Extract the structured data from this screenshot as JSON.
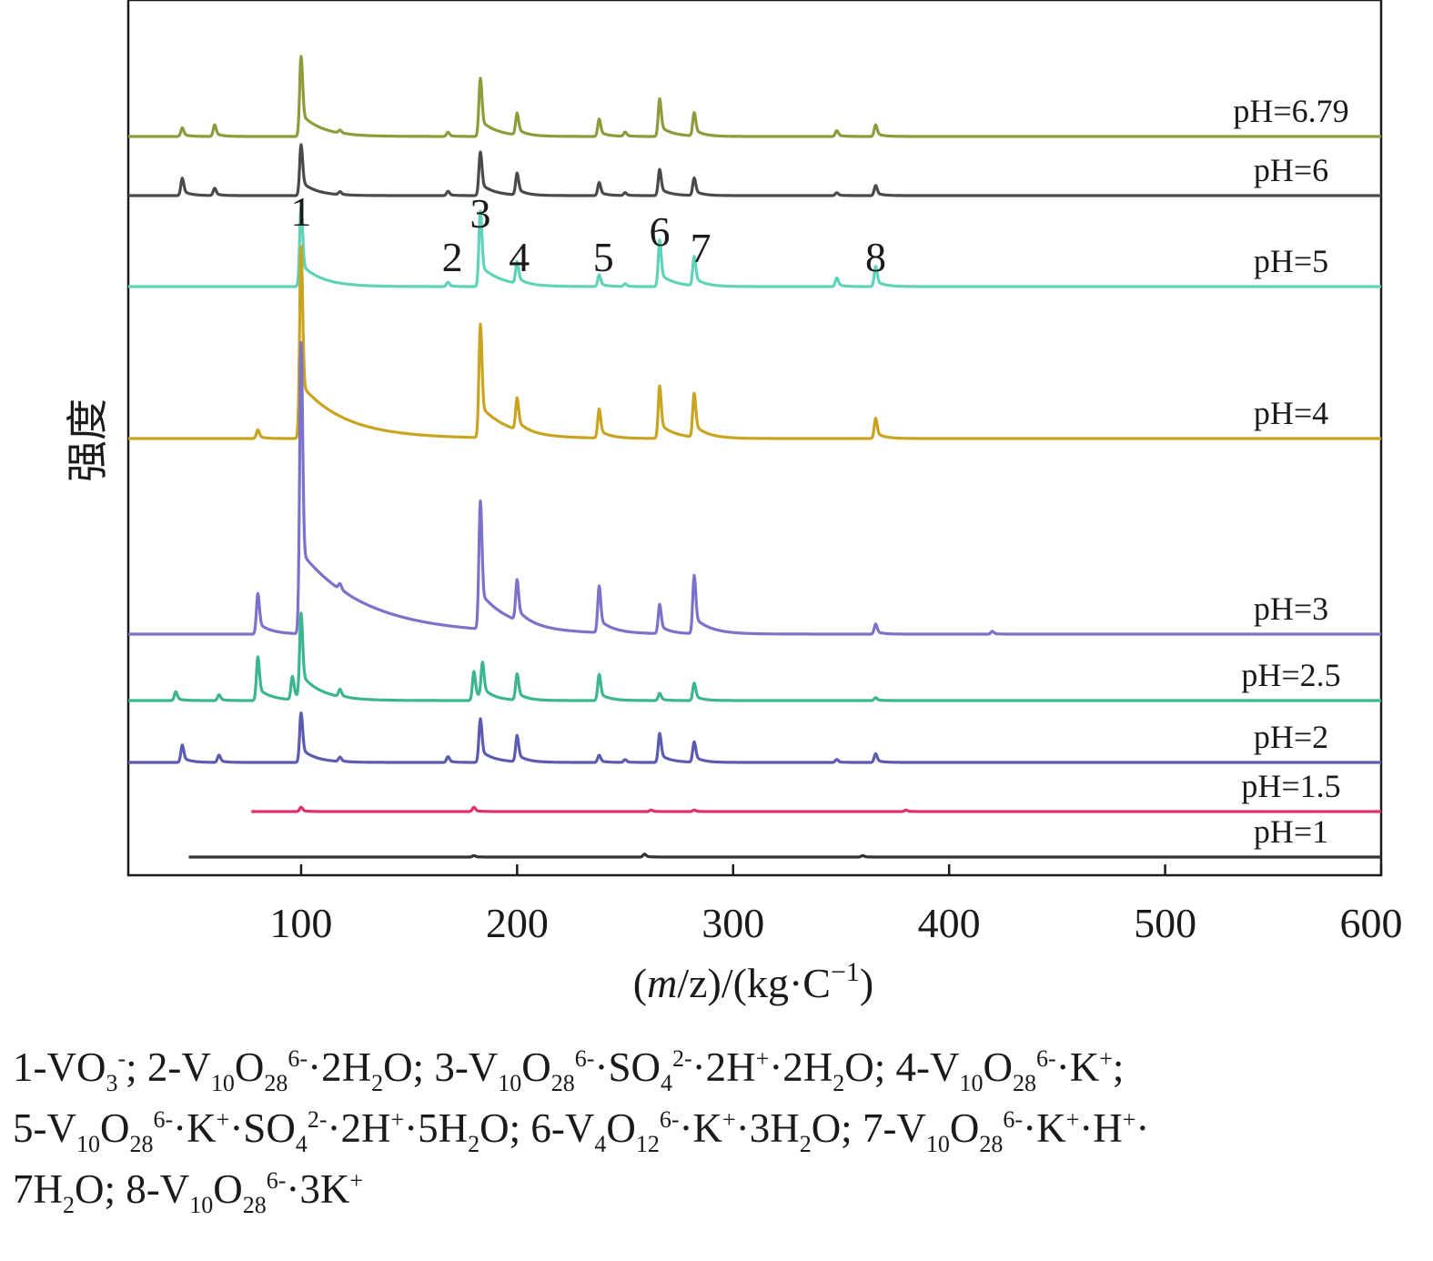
{
  "chart_data": {
    "type": "line",
    "title": "",
    "xlabel": "(m/z)/(kg·C⁻¹)",
    "ylabel": "强度",
    "xlim": [
      20,
      600
    ],
    "xticks": [
      100,
      200,
      300,
      400,
      500,
      600
    ],
    "grid": false,
    "y_scale": "stacked-offset (arbitrary intensity units)",
    "colors": {
      "pH=6.79": "#8f9a3a",
      "pH=6": "#4a4a4a",
      "pH=5": "#5fd3b8",
      "pH=4": "#c9a420",
      "pH=3": "#7b72c9",
      "pH=2.5": "#3cb591",
      "pH=2": "#5b5bb0",
      "pH=1.5": "#e0306a",
      "pH=1": "#333333"
    },
    "series": [
      {
        "name": "pH=6.79",
        "xrange": [
          20,
          600
        ],
        "peaks": [
          [
            45,
            0.06
          ],
          [
            60,
            0.08
          ],
          [
            100,
            0.55
          ],
          [
            118,
            0.02
          ],
          [
            168,
            0.03
          ],
          [
            183,
            0.4
          ],
          [
            200,
            0.15
          ],
          [
            238,
            0.12
          ],
          [
            250,
            0.03
          ],
          [
            266,
            0.26
          ],
          [
            282,
            0.16
          ],
          [
            348,
            0.04
          ],
          [
            366,
            0.08
          ]
        ]
      },
      {
        "name": "pH=6",
        "xrange": [
          20,
          600
        ],
        "peaks": [
          [
            45,
            0.12
          ],
          [
            60,
            0.05
          ],
          [
            100,
            0.35
          ],
          [
            118,
            0.02
          ],
          [
            168,
            0.03
          ],
          [
            183,
            0.3
          ],
          [
            200,
            0.15
          ],
          [
            238,
            0.09
          ],
          [
            250,
            0.02
          ],
          [
            266,
            0.18
          ],
          [
            282,
            0.12
          ],
          [
            348,
            0.02
          ],
          [
            366,
            0.07
          ]
        ]
      },
      {
        "name": "pH=5",
        "xrange": [
          20,
          600
        ],
        "peaks": [
          [
            100,
            0.55
          ],
          [
            168,
            0.03
          ],
          [
            183,
            0.52
          ],
          [
            200,
            0.15
          ],
          [
            238,
            0.08
          ],
          [
            250,
            0.02
          ],
          [
            266,
            0.32
          ],
          [
            282,
            0.2
          ],
          [
            348,
            0.06
          ],
          [
            366,
            0.14
          ]
        ]
      },
      {
        "name": "pH=4",
        "xrange": [
          20,
          600
        ],
        "peaks": [
          [
            80,
            0.06
          ],
          [
            100,
            1.32
          ],
          [
            183,
            0.78
          ],
          [
            200,
            0.22
          ],
          [
            238,
            0.2
          ],
          [
            266,
            0.36
          ],
          [
            282,
            0.3
          ],
          [
            366,
            0.14
          ]
        ]
      },
      {
        "name": "pH=3",
        "xrange": [
          20,
          600
        ],
        "peaks": [
          [
            80,
            0.28
          ],
          [
            100,
            2.0
          ],
          [
            118,
            0.04
          ],
          [
            183,
            0.88
          ],
          [
            200,
            0.28
          ],
          [
            238,
            0.32
          ],
          [
            266,
            0.2
          ],
          [
            282,
            0.4
          ],
          [
            366,
            0.07
          ],
          [
            420,
            0.02
          ]
        ]
      },
      {
        "name": "pH=2.5",
        "xrange": [
          20,
          600
        ],
        "peaks": [
          [
            42,
            0.06
          ],
          [
            62,
            0.04
          ],
          [
            80,
            0.3
          ],
          [
            96,
            0.16
          ],
          [
            100,
            0.58
          ],
          [
            118,
            0.05
          ],
          [
            180,
            0.2
          ],
          [
            184,
            0.24
          ],
          [
            200,
            0.18
          ],
          [
            238,
            0.18
          ],
          [
            266,
            0.05
          ],
          [
            282,
            0.12
          ],
          [
            366,
            0.02
          ]
        ]
      },
      {
        "name": "pH=2",
        "xrange": [
          20,
          600
        ],
        "peaks": [
          [
            45,
            0.12
          ],
          [
            62,
            0.05
          ],
          [
            100,
            0.34
          ],
          [
            118,
            0.03
          ],
          [
            168,
            0.04
          ],
          [
            183,
            0.3
          ],
          [
            200,
            0.18
          ],
          [
            238,
            0.05
          ],
          [
            250,
            0.02
          ],
          [
            266,
            0.2
          ],
          [
            282,
            0.14
          ],
          [
            348,
            0.02
          ],
          [
            366,
            0.06
          ]
        ]
      },
      {
        "name": "pH=1.5",
        "xrange": [
          77,
          600
        ],
        "peaks": [
          [
            100,
            0.03
          ],
          [
            180,
            0.03
          ],
          [
            262,
            0.01
          ],
          [
            282,
            0.01
          ],
          [
            380,
            0.01
          ]
        ]
      },
      {
        "name": "pH=1",
        "xrange": [
          48,
          600
        ],
        "peaks": [
          [
            180,
            0.01
          ],
          [
            259,
            0.02
          ],
          [
            360,
            0.01
          ]
        ]
      }
    ],
    "peak_annotations": [
      {
        "label": "1",
        "x": 100
      },
      {
        "label": "2",
        "x": 170
      },
      {
        "label": "3",
        "x": 183
      },
      {
        "label": "4",
        "x": 201
      },
      {
        "label": "5",
        "x": 240
      },
      {
        "label": "6",
        "x": 266
      },
      {
        "label": "7",
        "x": 285
      },
      {
        "label": "8",
        "x": 366
      }
    ]
  },
  "legend_lines": [
    [
      {
        "t": "1-VO"
      },
      {
        "t": "3",
        "sub": true
      },
      {
        "t": "-",
        "sup": true
      },
      {
        "t": "; 2-V"
      },
      {
        "t": "10",
        "sub": true
      },
      {
        "t": "O"
      },
      {
        "t": "28",
        "sub": true
      },
      {
        "t": "6-",
        "sup": true
      },
      {
        "t": "·2H"
      },
      {
        "t": "2",
        "sub": true
      },
      {
        "t": "O; 3-V"
      },
      {
        "t": "10",
        "sub": true
      },
      {
        "t": "O"
      },
      {
        "t": "28",
        "sub": true
      },
      {
        "t": "6-",
        "sup": true
      },
      {
        "t": "·SO"
      },
      {
        "t": "4",
        "sub": true
      },
      {
        "t": "2-",
        "sup": true
      },
      {
        "t": "·2H"
      },
      {
        "t": "+",
        "sup": true
      },
      {
        "t": "·2H"
      },
      {
        "t": "2",
        "sub": true
      },
      {
        "t": "O; 4-V"
      },
      {
        "t": "10",
        "sub": true
      },
      {
        "t": "O"
      },
      {
        "t": "28",
        "sub": true
      },
      {
        "t": "6-",
        "sup": true
      },
      {
        "t": "·K"
      },
      {
        "t": "+",
        "sup": true
      },
      {
        "t": ";"
      }
    ],
    [
      {
        "t": "5-V"
      },
      {
        "t": "10",
        "sub": true
      },
      {
        "t": "O"
      },
      {
        "t": "28",
        "sub": true
      },
      {
        "t": "6-",
        "sup": true
      },
      {
        "t": "·K"
      },
      {
        "t": "+",
        "sup": true
      },
      {
        "t": "·SO"
      },
      {
        "t": "4",
        "sub": true
      },
      {
        "t": "2-",
        "sup": true
      },
      {
        "t": "·2H"
      },
      {
        "t": "+",
        "sup": true
      },
      {
        "t": "·5H"
      },
      {
        "t": "2",
        "sub": true
      },
      {
        "t": "O; 6-V"
      },
      {
        "t": "4",
        "sub": true
      },
      {
        "t": "O"
      },
      {
        "t": "12",
        "sub": true
      },
      {
        "t": "6-",
        "sup": true
      },
      {
        "t": "·K"
      },
      {
        "t": "+",
        "sup": true
      },
      {
        "t": "·3H"
      },
      {
        "t": "2",
        "sub": true
      },
      {
        "t": "O; 7-V"
      },
      {
        "t": "10",
        "sub": true
      },
      {
        "t": "O"
      },
      {
        "t": "28",
        "sub": true
      },
      {
        "t": "6-",
        "sup": true
      },
      {
        "t": "·K"
      },
      {
        "t": "+",
        "sup": true
      },
      {
        "t": "·H"
      },
      {
        "t": "+",
        "sup": true
      },
      {
        "t": "·"
      }
    ],
    [
      {
        "t": "7H"
      },
      {
        "t": "2",
        "sub": true
      },
      {
        "t": "O; 8-V"
      },
      {
        "t": "10",
        "sub": true
      },
      {
        "t": "O"
      },
      {
        "t": "28",
        "sub": true
      },
      {
        "t": "6-",
        "sup": true
      },
      {
        "t": "·3K"
      },
      {
        "t": "+",
        "sup": true
      }
    ]
  ]
}
